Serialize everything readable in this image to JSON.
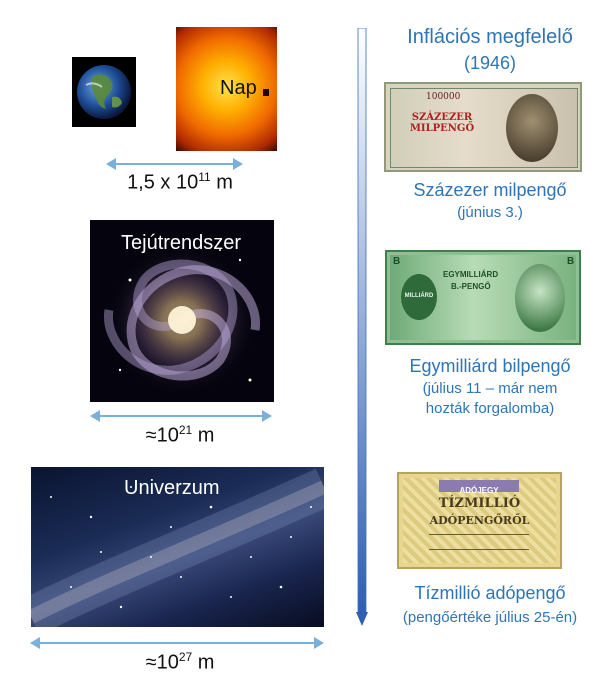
{
  "left": {
    "nap_label": "Nap",
    "sun_earth_distance": {
      "prefix": "1,5 x 10",
      "exp": "11",
      "unit": " m"
    },
    "galaxy_label": "Tejútrendszer",
    "galaxy_size": {
      "prefix": "≈10",
      "exp": "21",
      "unit": " m"
    },
    "universe_label": "Univerzum",
    "universe_size": {
      "prefix": "≈10",
      "exp": "27",
      "unit": " m"
    }
  },
  "right": {
    "title": "Inflációs megfelelő",
    "year": "(1946)",
    "notes": [
      {
        "name": "Százezer milpengő",
        "note": "(június 3.)"
      },
      {
        "name": "Egymilliárd bilpengő",
        "note_line1": "(július 11 – már nem",
        "note_line2": "hozták forgalomba)"
      },
      {
        "name": "Tízmillió adópengő",
        "note": "(pengőértéke július 25-én)"
      }
    ],
    "banknote_texts": {
      "n1_denom": "SZÁZEZER MILPENGŐ",
      "n1_number": "100000",
      "n2_word1": "EGYMILLIÁRD",
      "n2_word2": "B.-PENGŐ",
      "n2_badge": "MILLIÁRD",
      "n2_letter": "B",
      "n3_header": "ADÓJEGY",
      "n3_line1": "TÍZMILLIÓ",
      "n3_line2": "ADÓPENGŐRŐL"
    }
  }
}
